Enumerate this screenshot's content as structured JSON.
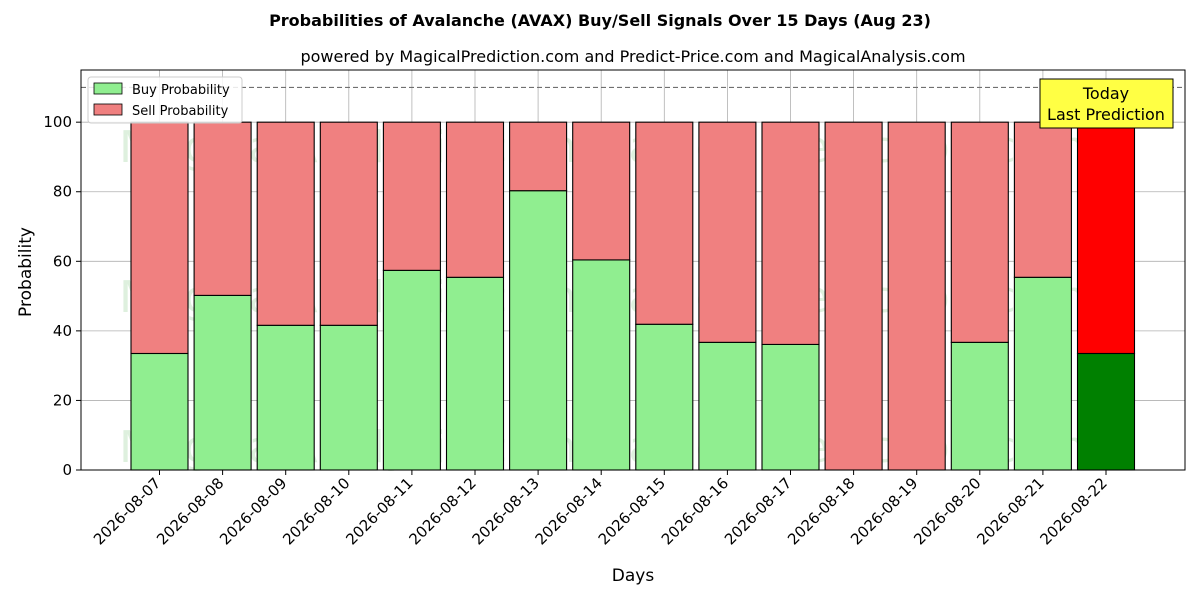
{
  "chart_data": {
    "type": "bar",
    "stacked": true,
    "title": "Probabilities of Avalanche (AVAX) Buy/Sell Signals Over 15 Days (Aug 23)",
    "subtitle": "powered by MagicalPrediction.com and Predict-Price.com and MagicalAnalysis.com",
    "xlabel": "Days",
    "ylabel": "Probability",
    "ylim": [
      0,
      115
    ],
    "yticks": [
      "0",
      "20",
      "40",
      "60",
      "80",
      "100"
    ],
    "grid": true,
    "legend_position": "top-left",
    "reference_line": 110,
    "categories": [
      "2026-08-07",
      "2026-08-08",
      "2026-08-09",
      "2026-08-10",
      "2026-08-11",
      "2026-08-12",
      "2026-08-13",
      "2026-08-14",
      "2026-08-15",
      "2026-08-16",
      "2026-08-17",
      "2026-08-18",
      "2026-08-19",
      "2026-08-20",
      "2026-08-21",
      "2026-08-22"
    ],
    "series": [
      {
        "name": "Buy Probability",
        "color": "#90ee90",
        "values": [
          33.5,
          50.2,
          41.6,
          41.6,
          57.4,
          55.4,
          80.3,
          60.4,
          41.9,
          36.7,
          36.1,
          0,
          0,
          36.7,
          55.4,
          33.5
        ]
      },
      {
        "name": "Sell Probability",
        "color": "#f08080",
        "values": [
          66.5,
          49.8,
          58.4,
          58.4,
          42.6,
          44.6,
          19.7,
          39.6,
          58.1,
          63.3,
          63.9,
          100,
          100,
          63.3,
          44.6,
          66.5
        ]
      }
    ],
    "highlight": {
      "index": 15,
      "buy_color": "#008000",
      "sell_color": "#ff0000",
      "label_line1": "Today",
      "label_line2": "Last Prediction",
      "label_bg": "#ffff44"
    },
    "watermarks": [
      "MagicalAnalysis.com",
      "MagicalPrediction.com"
    ]
  }
}
